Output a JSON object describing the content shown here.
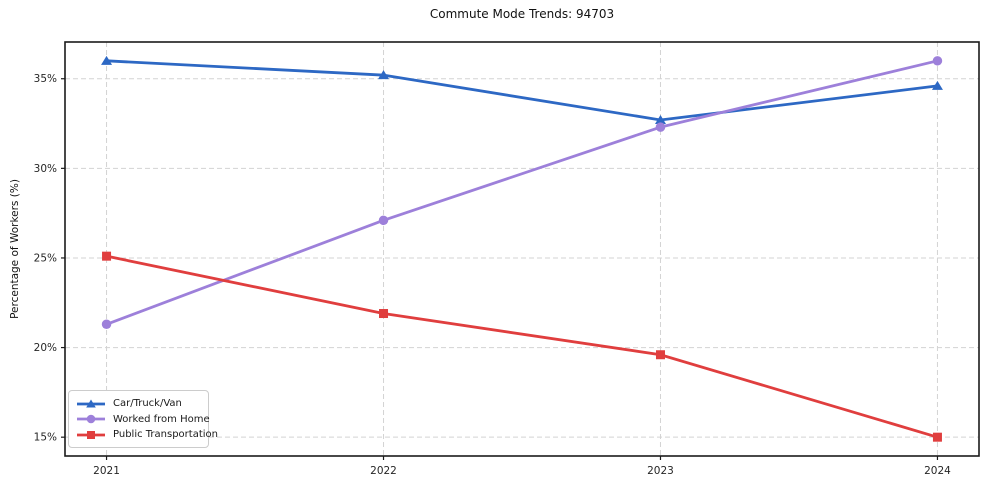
{
  "chart_data": {
    "type": "line",
    "title": "Commute Mode Trends: 94703",
    "xlabel": "",
    "ylabel": "Percentage of Workers (%)",
    "x": [
      2021,
      2022,
      2023,
      2024
    ],
    "x_tick_labels": [
      "2021",
      "2022",
      "2023",
      "2024"
    ],
    "y_ticks": [
      15,
      20,
      25,
      30,
      35
    ],
    "y_tick_labels": [
      "15%",
      "20%",
      "25%",
      "30%",
      "35%"
    ],
    "xlim": [
      2020.85,
      2024.15
    ],
    "ylim": [
      13.95,
      37.05
    ],
    "grid": true,
    "grid_style": "dashed",
    "legend_position": "lower-left",
    "series": [
      {
        "name": "Car/Truck/Van",
        "marker": "triangle",
        "color": "#2d68c4",
        "values": [
          36.0,
          35.2,
          32.7,
          34.6
        ]
      },
      {
        "name": "Worked from Home",
        "marker": "circle",
        "color": "#9d80da",
        "values": [
          21.3,
          27.1,
          32.3,
          36.0
        ]
      },
      {
        "name": "Public Transportation",
        "marker": "square",
        "color": "#e03e3e",
        "values": [
          25.1,
          21.9,
          19.6,
          15.0
        ]
      }
    ]
  },
  "style_colors": {
    "grid": "#d3d3d3",
    "spine": "#1a1a1a",
    "tick_text": "#262626"
  }
}
